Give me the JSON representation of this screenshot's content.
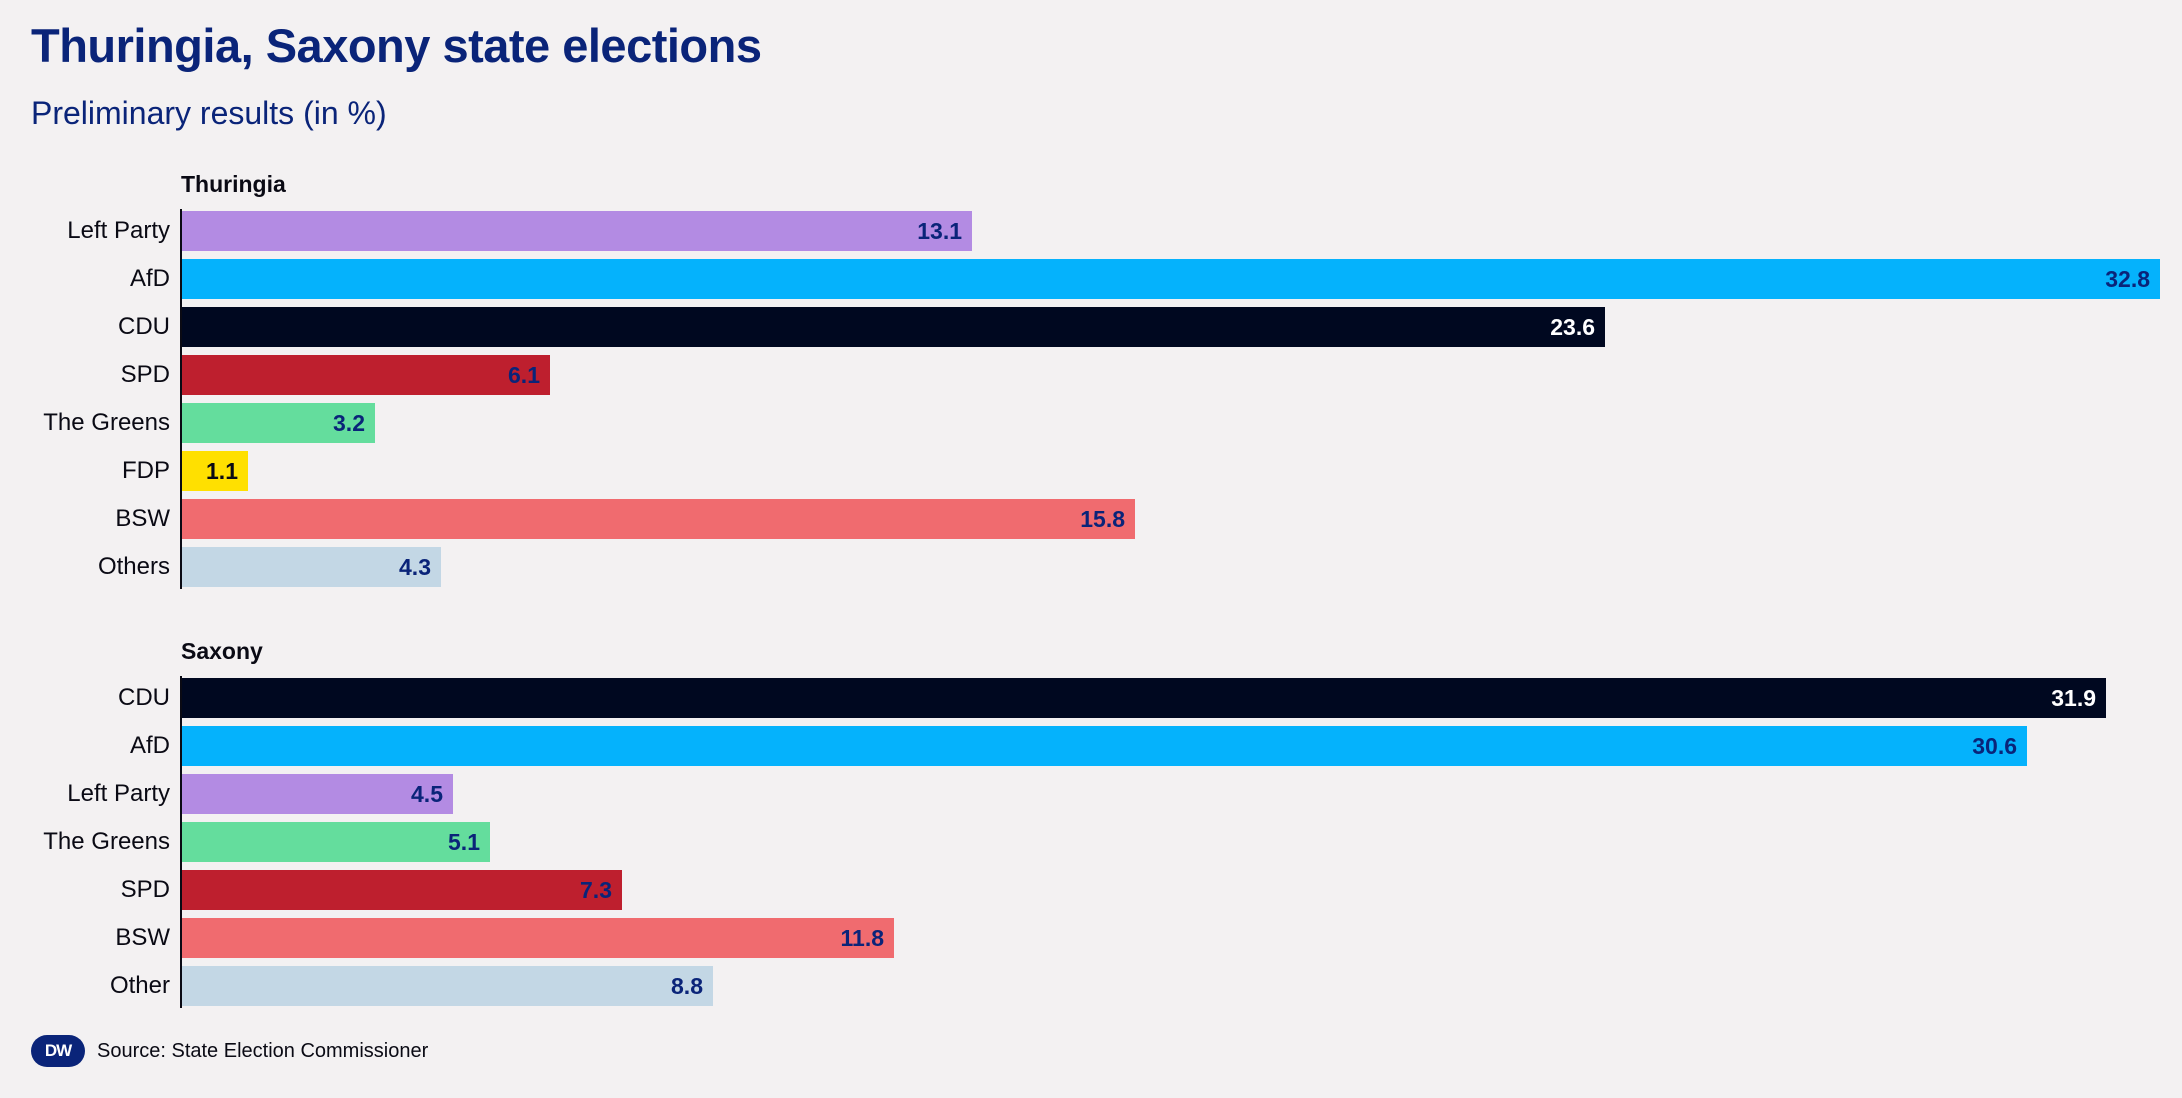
{
  "header": {
    "title": "Thuringia, Saxony state elections",
    "subtitle": "Preliminary results (in %)"
  },
  "chart_data": [
    {
      "type": "bar",
      "orientation": "horizontal",
      "title": "Thuringia",
      "categories": [
        "Left Party",
        "AfD",
        "CDU",
        "SPD",
        "The Greens",
        "FDP",
        "BSW",
        "Others"
      ],
      "values": [
        13.1,
        32.8,
        23.6,
        6.1,
        3.2,
        1.1,
        15.8,
        4.3
      ],
      "value_labels": [
        "13.1",
        "32.8",
        "23.6",
        "6.1",
        "3.2",
        "1.1",
        "15.8",
        "4.3"
      ],
      "colors": [
        "#b38be3",
        "#05b2fc",
        "#000820",
        "#be1f2e",
        "#64dd9d",
        "#ffe000",
        "#f06b6f",
        "#c3d7e5"
      ],
      "label_colors": [
        "#0a2479",
        "#0a2479",
        "#ffffff",
        "#0a2479",
        "#0a2479",
        "#0a0a14",
        "#0a2479",
        "#0a2479"
      ],
      "xlim": [
        0,
        32.8
      ],
      "grid": false
    },
    {
      "type": "bar",
      "orientation": "horizontal",
      "title": "Saxony",
      "categories": [
        "CDU",
        "AfD",
        "Left Party",
        "The Greens",
        "SPD",
        "BSW",
        "Other"
      ],
      "values": [
        31.9,
        30.6,
        4.5,
        5.1,
        7.3,
        11.8,
        8.8
      ],
      "value_labels": [
        "31.9",
        "30.6",
        "4.5",
        "5.1",
        "7.3",
        "11.8",
        "8.8"
      ],
      "colors": [
        "#000820",
        "#05b2fc",
        "#b38be3",
        "#64dd9d",
        "#be1f2e",
        "#f06b6f",
        "#c3d7e5"
      ],
      "label_colors": [
        "#ffffff",
        "#0a2479",
        "#0a2479",
        "#0a2479",
        "#0a2479",
        "#0a2479",
        "#0a2479"
      ],
      "xlim": [
        0,
        32.8
      ],
      "grid": false
    }
  ],
  "footer": {
    "logo_text": "DW",
    "source": "Source: State Election Commissioner"
  }
}
